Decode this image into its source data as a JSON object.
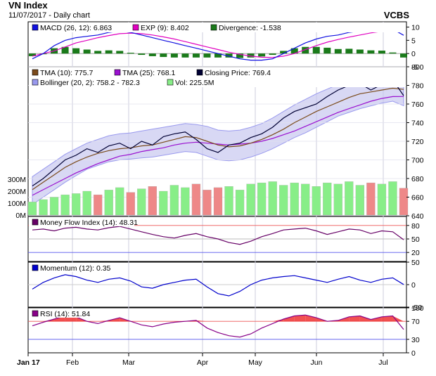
{
  "header": {
    "title": "VN Index",
    "subtitle": "11/07/2017 - Daily chart",
    "brand": "VCBS"
  },
  "colors": {
    "macd": "#1010e0",
    "exp": "#e000c0",
    "divergence": "#1a7a1a",
    "tma10": "#7a4a1a",
    "tma25": "#9a10d0",
    "close": "#000033",
    "bollinger": "#9999ee",
    "vol_up": "#88ee88",
    "vol_down": "#ee8888",
    "mfi": "#660066",
    "momentum": "#0000cc",
    "rsi": "#880088",
    "rsi_fill": "#ee3333"
  },
  "chart_data": [
    {
      "panel": "macd",
      "type": "line",
      "legend": [
        {
          "name": "MACD (26, 12): 6.863",
          "color": "#1010e0"
        },
        {
          "name": "EXP (9): 8.402",
          "color": "#e000c0"
        },
        {
          "name": "Divergence: -1.538",
          "color": "#1a7a1a"
        }
      ],
      "y_ticks": [
        "10",
        "5",
        "0",
        "-5"
      ],
      "ylim": [
        -5,
        12
      ],
      "series": [
        {
          "name": "MACD (26, 12)",
          "values": [
            -2,
            0,
            3,
            5,
            6,
            6.5,
            7,
            8,
            8.5,
            8,
            7,
            6,
            5,
            4,
            3,
            2,
            1,
            0,
            -1,
            -2,
            -2.5,
            -2.5,
            -2,
            0,
            2,
            4,
            5.5,
            6.5,
            7,
            8,
            8.5,
            9,
            9.5,
            9.2,
            6.9
          ]
        },
        {
          "name": "EXP (9)",
          "values": [
            -1,
            0,
            1,
            2.5,
            4,
            5,
            6,
            6.8,
            7.5,
            7.7,
            7.5,
            7,
            6.3,
            5.5,
            4.5,
            3.5,
            2.5,
            1.5,
            0.5,
            -0.3,
            -1,
            -1.4,
            -1.5,
            -1,
            0,
            1.5,
            3,
            4.3,
            5.3,
            6.2,
            7,
            7.8,
            8.4,
            8.8,
            8.4
          ]
        },
        {
          "name": "Divergence",
          "values": [
            -1,
            0,
            2,
            2.5,
            2,
            1.5,
            1,
            1.2,
            1,
            0.3,
            -0.5,
            -1,
            -1.3,
            -1.5,
            -1.5,
            -1.5,
            -1.5,
            -1.5,
            -1.5,
            -1.7,
            -1.5,
            -1.1,
            -0.5,
            1,
            2,
            2.5,
            2.5,
            2.2,
            1.7,
            1.8,
            1.5,
            1.2,
            1.1,
            0.4,
            -1.5
          ]
        }
      ]
    },
    {
      "panel": "price",
      "type": "line",
      "legend": [
        {
          "name": "TMA (10): 775.7",
          "color": "#7a4a1a"
        },
        {
          "name": "TMA (25): 768.1",
          "color": "#9a10d0"
        },
        {
          "name": "Closing Price: 769.4",
          "color": "#000033"
        },
        {
          "name": "Bollinger (20, 2): 758.2 - 782.3",
          "color": "#9999ee"
        },
        {
          "name": "Vol: 225.5M",
          "color": "#88ee88"
        }
      ],
      "y_ticks": [
        "800",
        "780",
        "760",
        "740",
        "720",
        "700",
        "680",
        "660",
        "640"
      ],
      "ylim": [
        640,
        800
      ],
      "vol_ticks": [
        "300M",
        "200M",
        "100M",
        "0M"
      ],
      "series": [
        {
          "name": "Closing Price",
          "values": [
            672,
            680,
            690,
            700,
            705,
            712,
            708,
            715,
            718,
            712,
            720,
            716,
            725,
            728,
            730,
            722,
            712,
            708,
            716,
            718,
            724,
            728,
            735,
            745,
            752,
            756,
            760,
            768,
            775,
            780,
            782,
            775,
            781,
            786,
            769
          ]
        },
        {
          "name": "TMA (10)",
          "values": [
            668,
            676,
            684,
            692,
            698,
            703,
            707,
            710,
            712,
            713,
            715,
            716,
            719,
            722,
            725,
            724,
            720,
            716,
            714,
            715,
            718,
            722,
            727,
            733,
            740,
            746,
            752,
            757,
            762,
            767,
            771,
            773,
            775,
            777,
            775.7
          ]
        },
        {
          "name": "TMA (25)",
          "values": [
            662,
            668,
            674,
            680,
            686,
            691,
            696,
            700,
            704,
            706,
            709,
            711,
            713,
            716,
            718,
            719,
            718,
            717,
            716,
            717,
            718,
            720,
            723,
            727,
            731,
            736,
            741,
            746,
            751,
            755,
            759,
            763,
            766,
            768,
            768.1
          ]
        },
        {
          "name": "Bollinger upper",
          "values": [
            682,
            690,
            698,
            706,
            712,
            718,
            722,
            726,
            728,
            729,
            731,
            733,
            735,
            737,
            739,
            738,
            736,
            732,
            731,
            732,
            735,
            739,
            745,
            752,
            759,
            765,
            771,
            776,
            781,
            785,
            788,
            789,
            790,
            791,
            782.3
          ]
        },
        {
          "name": "Bollinger lower",
          "values": [
            652,
            660,
            668,
            676,
            683,
            690,
            694,
            698,
            700,
            701,
            702,
            703,
            705,
            707,
            709,
            708,
            704,
            700,
            699,
            700,
            703,
            707,
            712,
            718,
            724,
            729,
            735,
            741,
            747,
            751,
            755,
            758,
            761,
            763,
            758.2
          ]
        },
        {
          "name": "Vol",
          "values": [
            110,
            130,
            150,
            170,
            180,
            200,
            170,
            210,
            230,
            190,
            220,
            240,
            200,
            250,
            230,
            260,
            210,
            230,
            240,
            210,
            260,
            270,
            280,
            250,
            270,
            260,
            240,
            270,
            260,
            280,
            250,
            270,
            260,
            280,
            225.5
          ]
        }
      ]
    },
    {
      "panel": "mfi",
      "type": "line",
      "legend": [
        {
          "name": "Money Flow Index (14): 48.31",
          "color": "#660066"
        }
      ],
      "y_ticks": [
        "80",
        "50",
        "20"
      ],
      "ylim": [
        0,
        100
      ],
      "series": [
        {
          "name": "Money Flow Index (14)",
          "values": [
            70,
            72,
            68,
            74,
            76,
            72,
            70,
            75,
            78,
            72,
            66,
            60,
            55,
            52,
            58,
            62,
            55,
            50,
            42,
            38,
            45,
            55,
            62,
            70,
            72,
            74,
            68,
            60,
            66,
            72,
            70,
            62,
            68,
            66,
            48.31
          ]
        }
      ]
    },
    {
      "panel": "momentum",
      "type": "line",
      "legend": [
        {
          "name": "Momentum (12): 0.35",
          "color": "#0000cc"
        }
      ],
      "y_ticks": [
        "50",
        "0",
        "-50"
      ],
      "ylim": [
        -50,
        50
      ],
      "series": [
        {
          "name": "Momentum (12)",
          "values": [
            -10,
            5,
            15,
            22,
            18,
            10,
            5,
            12,
            15,
            8,
            -5,
            -8,
            0,
            5,
            10,
            12,
            -5,
            -20,
            -25,
            -15,
            0,
            10,
            15,
            18,
            20,
            15,
            10,
            5,
            12,
            18,
            10,
            5,
            12,
            15,
            0.35
          ]
        }
      ]
    },
    {
      "panel": "rsi",
      "type": "line",
      "legend": [
        {
          "name": "RSI (14): 51.84",
          "color": "#880088"
        }
      ],
      "y_ticks": [
        "100",
        "70",
        "30",
        "0"
      ],
      "ylim": [
        0,
        100
      ],
      "series": [
        {
          "name": "RSI (14)",
          "values": [
            60,
            68,
            75,
            82,
            80,
            70,
            65,
            72,
            78,
            70,
            62,
            58,
            64,
            68,
            70,
            72,
            55,
            45,
            38,
            35,
            42,
            55,
            65,
            75,
            82,
            84,
            78,
            70,
            72,
            80,
            82,
            74,
            80,
            82,
            51.84
          ]
        }
      ]
    },
    {
      "panel": "x_axis",
      "type": "axis",
      "x_ticks": [
        "Jan 17",
        "Feb",
        "Mar",
        "Apr",
        "May",
        "Jun",
        "Jul"
      ]
    }
  ]
}
